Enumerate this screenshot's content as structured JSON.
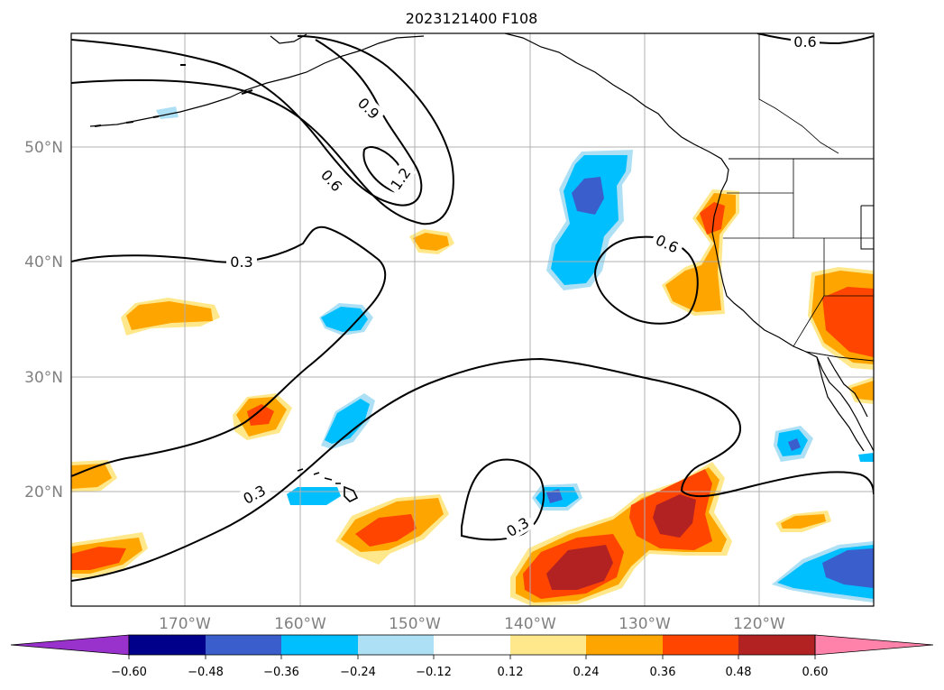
{
  "title": "2023121400 F108",
  "lat_labels": [
    "50°N",
    "40°N",
    "30°N",
    "20°N"
  ],
  "lon_labels": [
    "170°W",
    "160°W",
    "150°W",
    "140°W",
    "130°W",
    "120°W"
  ],
  "contour_labels": [
    "0.6",
    "0.9",
    "1.2",
    "0.6",
    "0.3",
    "0.6",
    "0.3",
    "0.3"
  ],
  "colorbar": {
    "ticks": [
      "−0.60",
      "−0.48",
      "−0.36",
      "−0.24",
      "−0.12",
      "0.12",
      "0.24",
      "0.36",
      "0.48",
      "0.60"
    ],
    "colors": [
      "#9932CC",
      "#00008B",
      "#3A5FCD",
      "#00BFFF",
      "#ADE0F5",
      "#FFFFFF",
      "#FFE88C",
      "#FFA500",
      "#FF4500",
      "#B22222",
      "#FF82AB"
    ]
  },
  "colors": {
    "pos_light": "#FFE88C",
    "pos_mid": "#FFA500",
    "pos_strong": "#FF4500",
    "pos_max": "#B22222",
    "neg_light": "#ADE0F5",
    "neg_mid": "#00BFFF",
    "neg_strong": "#3A5FCD"
  }
}
